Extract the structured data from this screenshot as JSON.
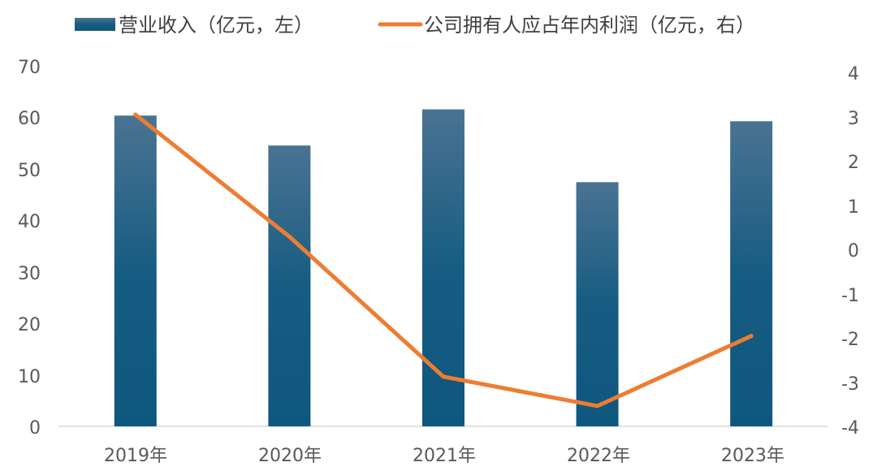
{
  "chart_data": {
    "type": "bar+line",
    "categories": [
      "2019年",
      "2020年",
      "2021年",
      "2022年",
      "2023年"
    ],
    "series": [
      {
        "name": "营业收入（亿元，左）",
        "type": "bar",
        "axis": "left",
        "color": "#1a5a80",
        "values": [
          60.2,
          54.4,
          61.4,
          47.3,
          59.1
        ]
      },
      {
        "name": "公司拥有人应占年内利润（亿元，右）",
        "type": "line",
        "axis": "right",
        "color": "#ed7d31",
        "values": [
          2.9,
          0.2,
          -2.9,
          -3.55,
          -2.0
        ]
      }
    ],
    "y_left": {
      "min": 0,
      "max": 70,
      "step": 10,
      "ticks": [
        "0",
        "10",
        "20",
        "30",
        "40",
        "50",
        "60",
        "70"
      ]
    },
    "y_right": {
      "min": -4,
      "max": 4,
      "step": 1,
      "ticks": [
        "-4",
        "-3",
        "-2",
        "-1",
        "0",
        "1",
        "2",
        "3",
        "4"
      ]
    },
    "grid": false,
    "legend_position": "top"
  }
}
